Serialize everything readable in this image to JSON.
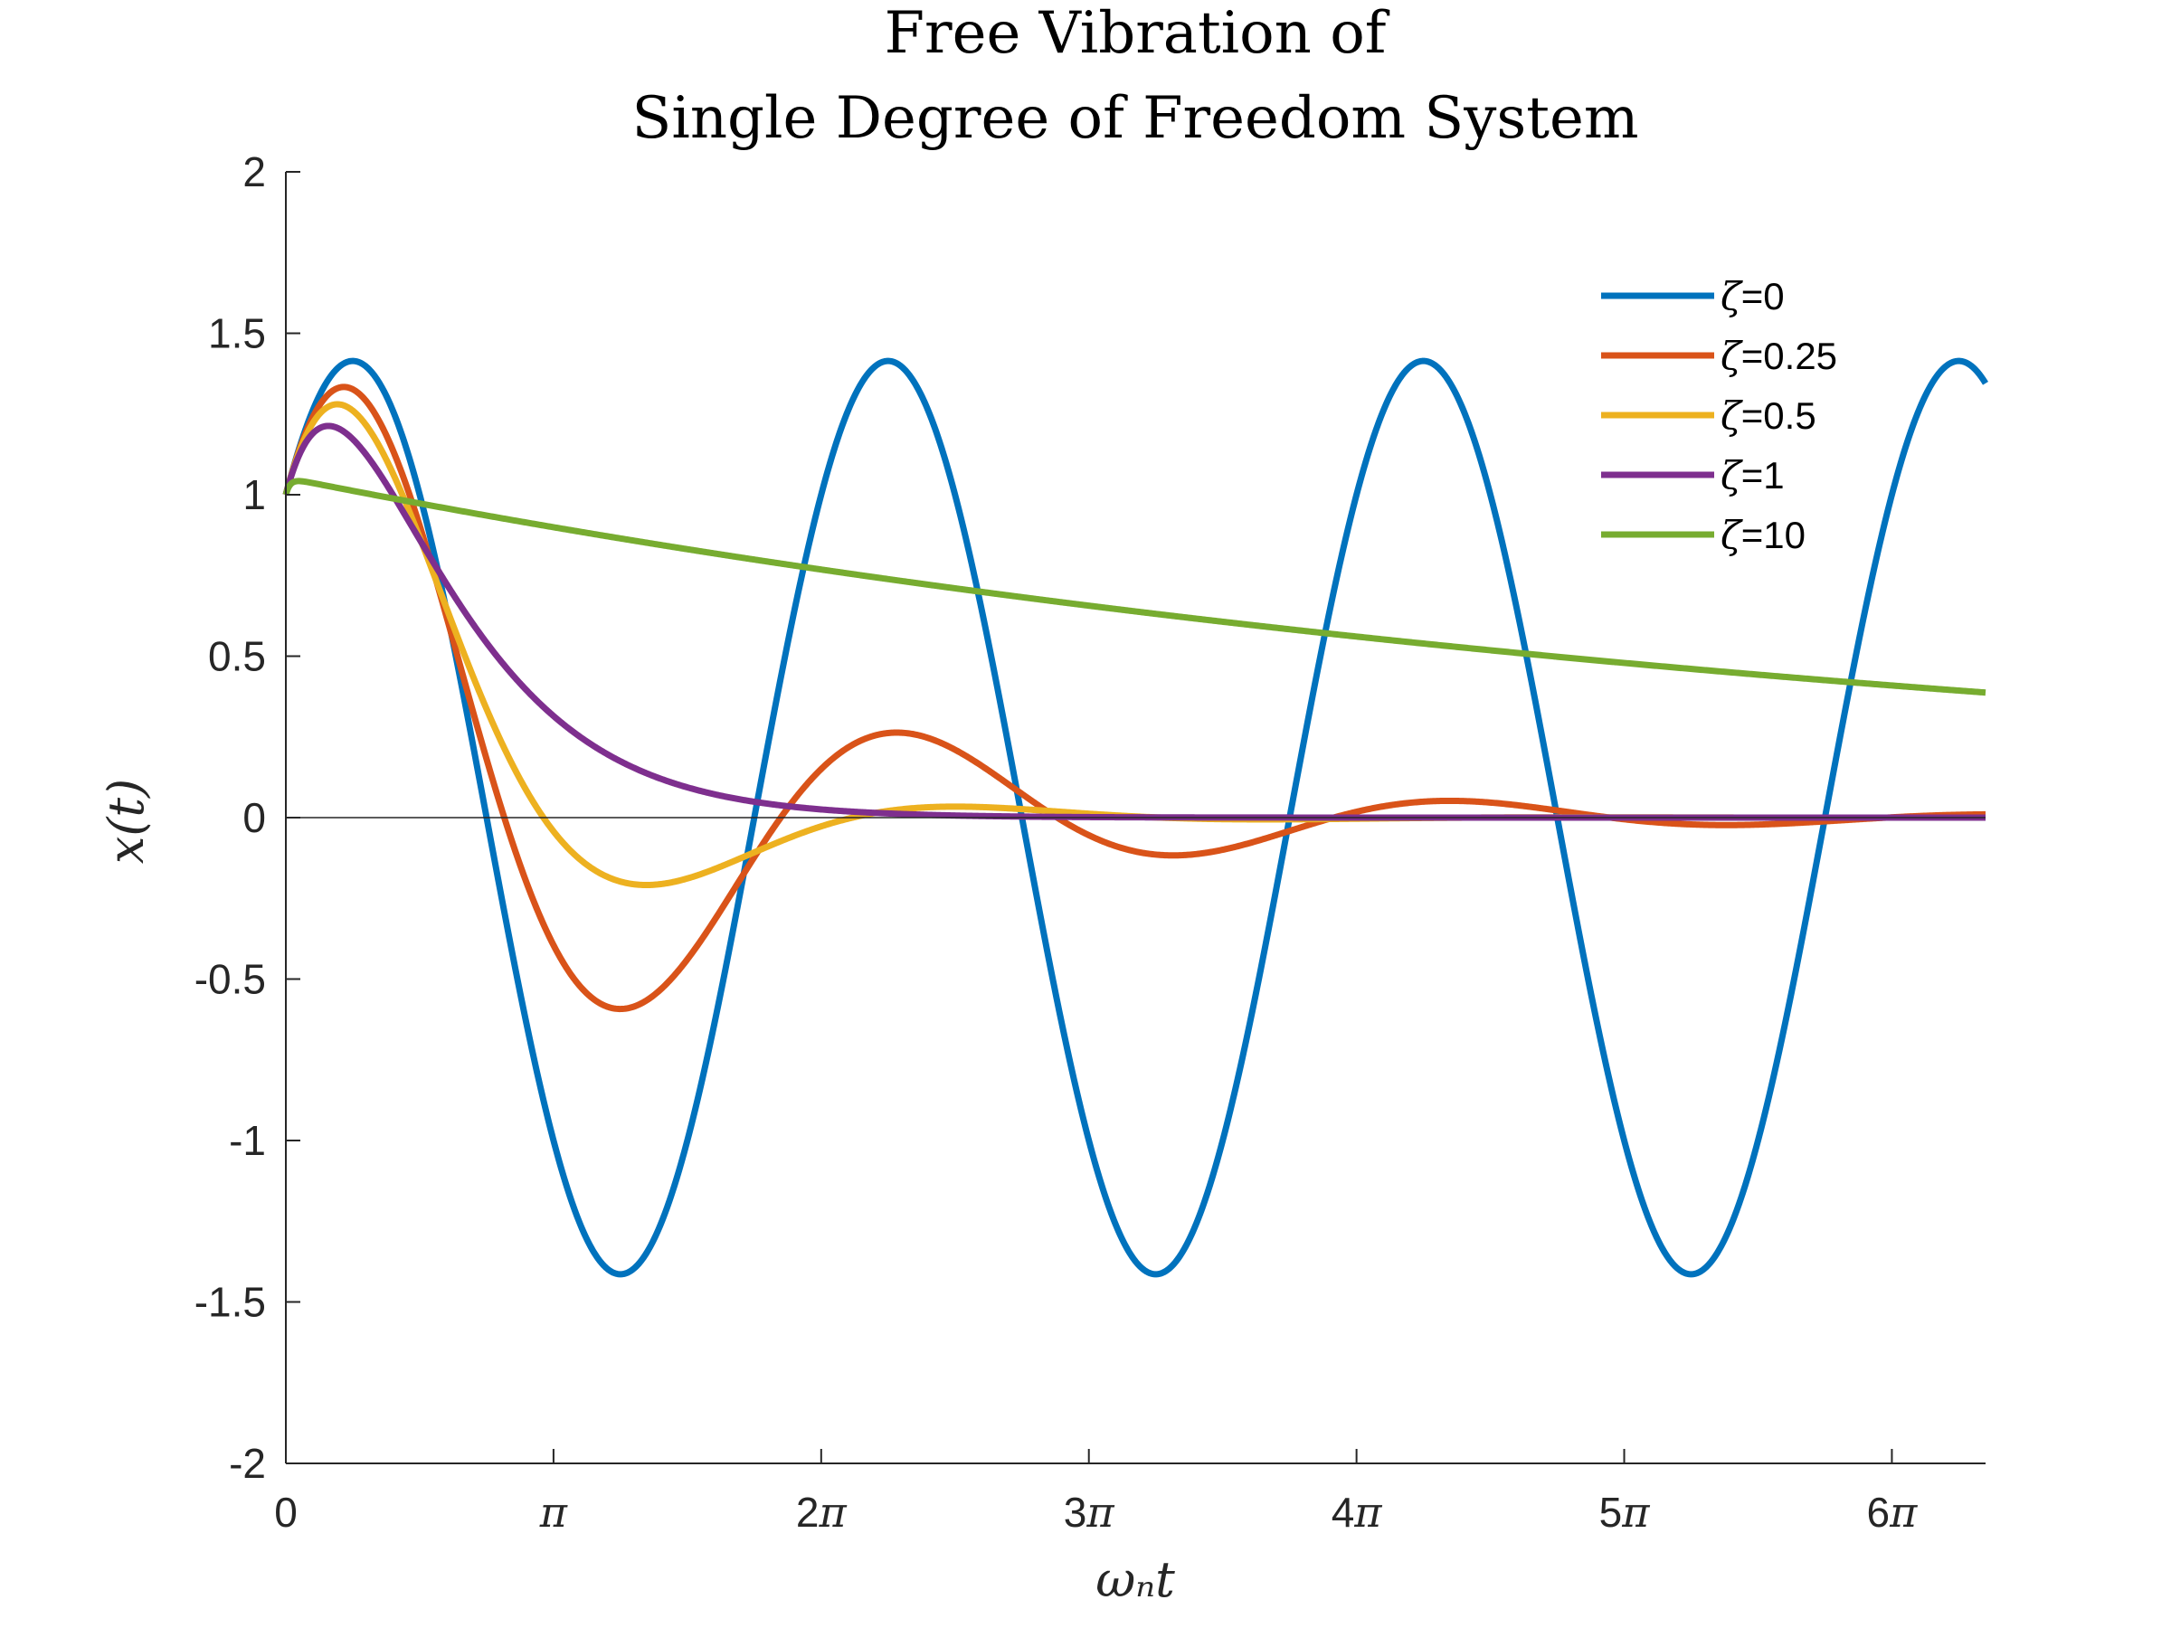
{
  "chart_data": {
    "type": "line",
    "title": [
      "Free Vibration of",
      "Single Degree of Freedom System"
    ],
    "xlabel": "ωₙt",
    "ylabel": "x(t)",
    "xlim": [
      0,
      6.35
    ],
    "ylim": [
      -2,
      2
    ],
    "x_unit": "π",
    "x_ticks": [
      0,
      1,
      2,
      3,
      4,
      5,
      6
    ],
    "x_tick_labels": [
      "0",
      "π",
      "2π",
      "3π",
      "4π",
      "5π",
      "6π"
    ],
    "y_ticks": [
      -2,
      -1.5,
      -1,
      -0.5,
      0,
      0.5,
      1,
      1.5,
      2
    ],
    "y_tick_labels": [
      "-2",
      "-1.5",
      "-1",
      "-0.5",
      "0",
      "0.5",
      "1",
      "1.5",
      "2"
    ],
    "zero_line": true,
    "grid": false,
    "legend_position": "top-right",
    "initial_conditions": {
      "x0": 1,
      "v0": 1
    },
    "series": [
      {
        "name": "ζ=0",
        "symbol": "ζ",
        "label_value": "=0",
        "zeta": 0,
        "color": "#0072BD"
      },
      {
        "name": "ζ=0.25",
        "symbol": "ζ",
        "label_value": "=0.25",
        "zeta": 0.25,
        "color": "#D95319"
      },
      {
        "name": "ζ=0.5",
        "symbol": "ζ",
        "label_value": "=0.5",
        "zeta": 0.5,
        "color": "#EDB120"
      },
      {
        "name": "ζ=1",
        "symbol": "ζ",
        "label_value": "=1",
        "zeta": 1,
        "color": "#7E2F8E"
      },
      {
        "name": "ζ=10",
        "symbol": "ζ",
        "label_value": "=10",
        "zeta": 10,
        "color": "#77AC30"
      }
    ]
  }
}
